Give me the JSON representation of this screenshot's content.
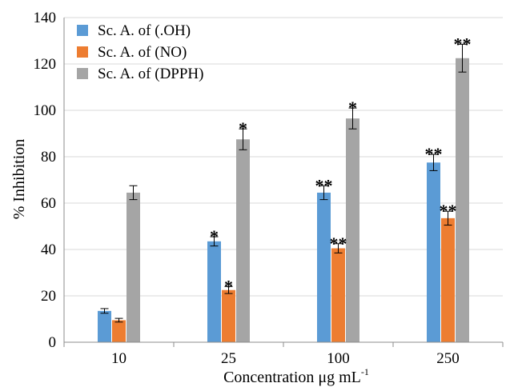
{
  "chart_data": {
    "type": "bar",
    "categories": [
      "10",
      "25",
      "100",
      "250"
    ],
    "series": [
      {
        "name": "Sc. A. of (.OH)",
        "color": "#5B9BD5",
        "values": [
          13.5,
          43.5,
          64.5,
          77.5
        ],
        "errors": [
          1,
          2,
          3,
          3.5
        ],
        "significance": [
          "",
          "*",
          "**",
          "**"
        ]
      },
      {
        "name": "Sc. A. of (NO)",
        "color": "#ED7D31",
        "values": [
          9.5,
          22.5,
          40.5,
          53.5
        ],
        "errors": [
          0.8,
          1.5,
          2,
          3
        ],
        "significance": [
          "",
          "*",
          "**",
          "**"
        ]
      },
      {
        "name": "Sc. A. of (DPPH)",
        "color": "#A5A5A5",
        "values": [
          64.5,
          87.5,
          96.5,
          122.5
        ],
        "errors": [
          3,
          4.5,
          4.5,
          6
        ],
        "significance": [
          "",
          "*",
          "*",
          "**"
        ]
      }
    ],
    "xlabel": {
      "main": "Concentration μg mL",
      "sup": "-1"
    },
    "ylabel": "% Inhibition",
    "ylim": [
      0,
      140
    ],
    "yticks": [
      "0",
      "20",
      "40",
      "60",
      "80",
      "100",
      "120",
      "140"
    ],
    "grid": true,
    "legend": "top-left"
  }
}
